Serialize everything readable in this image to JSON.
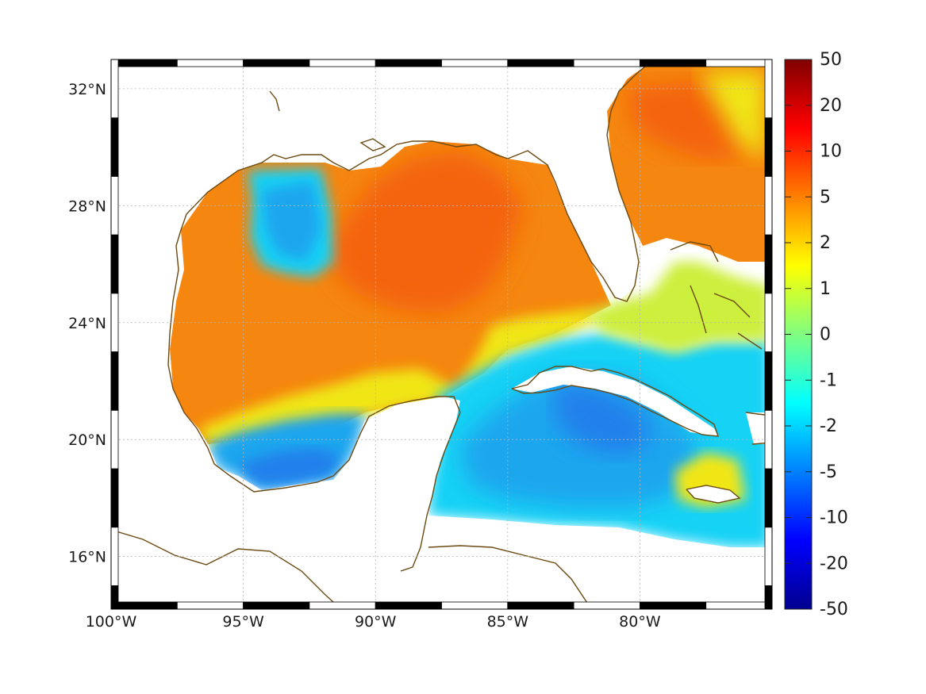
{
  "map": {
    "lon_ticks": [
      {
        "value": -100,
        "label": "100°W"
      },
      {
        "value": -95,
        "label": "95°W"
      },
      {
        "value": -90,
        "label": "90°W"
      },
      {
        "value": -85,
        "label": "85°W"
      },
      {
        "value": -80,
        "label": "80°W"
      }
    ],
    "lat_ticks": [
      {
        "value": 32,
        "label": "32°N"
      },
      {
        "value": 28,
        "label": "28°N"
      },
      {
        "value": 24,
        "label": "24°N"
      },
      {
        "value": 20,
        "label": "20°N"
      },
      {
        "value": 16,
        "label": "16°N"
      }
    ],
    "lon_range": [
      -100,
      -75
    ],
    "lat_range": [
      14.2,
      33
    ],
    "grid": true,
    "coastline_color": "#6b4a12",
    "frame_colors": [
      "#000000",
      "#ffffff"
    ]
  },
  "colorbar": {
    "position": "right",
    "ticks": [
      "50",
      "20",
      "10",
      "5",
      "2",
      "1",
      "0",
      "-1",
      "-2",
      "-5",
      "-10",
      "-20",
      "-50"
    ],
    "colormap": [
      "#00008f",
      "#0000ff",
      "#0080ff",
      "#00ffff",
      "#80ff80",
      "#ffff00",
      "#ff8000",
      "#ff0000",
      "#800000"
    ]
  },
  "field_colors": {
    "land": "#ffffff",
    "orange": "#f5860f",
    "deep_orange": "#f46408",
    "red_orange": "#f25a05",
    "yellow": "#f0e616",
    "light_green": "#a7ee55",
    "green_yellow": "#cdef3c",
    "cyan": "#17d2f5",
    "sky_blue": "#1aa6ee",
    "blue": "#2280ec",
    "deep_blue": "#1a54e0"
  }
}
